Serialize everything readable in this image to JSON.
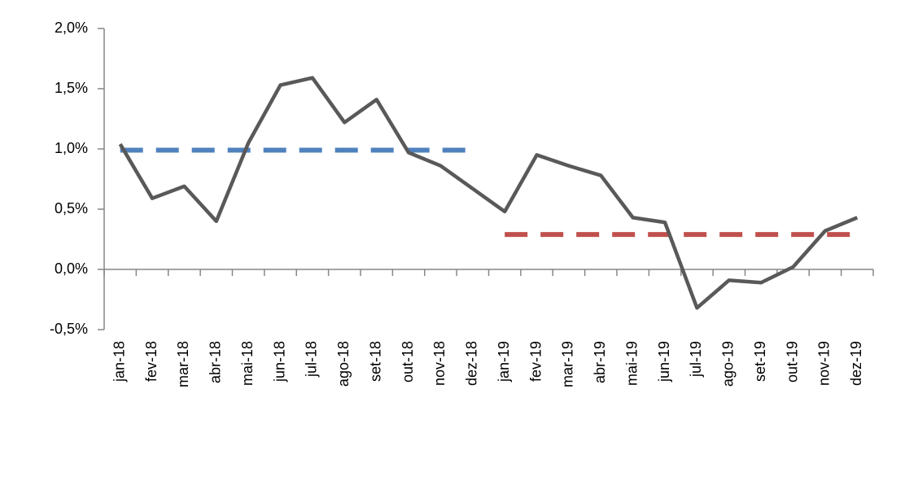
{
  "chart_data": {
    "type": "line",
    "categories": [
      "jan-18",
      "fev-18",
      "mar-18",
      "abr-18",
      "mai-18",
      "jun-18",
      "jul-18",
      "ago-18",
      "set-18",
      "out-18",
      "nov-18",
      "dez-18",
      "jan-19",
      "fev-19",
      "mar-19",
      "abr-19",
      "mai-19",
      "jun-19",
      "jul-19",
      "ago-19",
      "set-19",
      "out-19",
      "nov-19",
      "dez-19"
    ],
    "series": [
      {
        "color": "#595959",
        "values": [
          1.04,
          0.59,
          0.69,
          0.4,
          1.05,
          1.53,
          1.59,
          1.22,
          1.41,
          0.97,
          0.86,
          0.67,
          0.48,
          0.95,
          0.86,
          0.78,
          0.43,
          0.39,
          -0.32,
          -0.09,
          -0.11,
          0.02,
          0.32,
          0.43
        ]
      },
      {
        "color": "#4f81bd",
        "dashed": true,
        "values": [
          0.99,
          0.99,
          0.99,
          0.99,
          0.99,
          0.99,
          0.99,
          0.99,
          0.99,
          0.99,
          0.99,
          0.99,
          null,
          null,
          null,
          null,
          null,
          null,
          null,
          null,
          null,
          null,
          null,
          null
        ]
      },
      {
        "color": "#c0504d",
        "dashed": true,
        "values": [
          null,
          null,
          null,
          null,
          null,
          null,
          null,
          null,
          null,
          null,
          null,
          null,
          0.29,
          0.29,
          0.29,
          0.29,
          0.29,
          0.29,
          0.29,
          0.29,
          0.29,
          0.29,
          0.29,
          0.29
        ]
      }
    ],
    "ylim": [
      -0.5,
      2.0
    ],
    "yticks": [
      {
        "value": -0.5,
        "label": "-0,5%"
      },
      {
        "value": 0,
        "label": "0,0%"
      },
      {
        "value": 0.5,
        "label": "0,5%"
      },
      {
        "value": 1.0,
        "label": "1,0%"
      },
      {
        "value": 1.5,
        "label": "1,5%"
      },
      {
        "value": 2.0,
        "label": "2,0%"
      }
    ]
  }
}
